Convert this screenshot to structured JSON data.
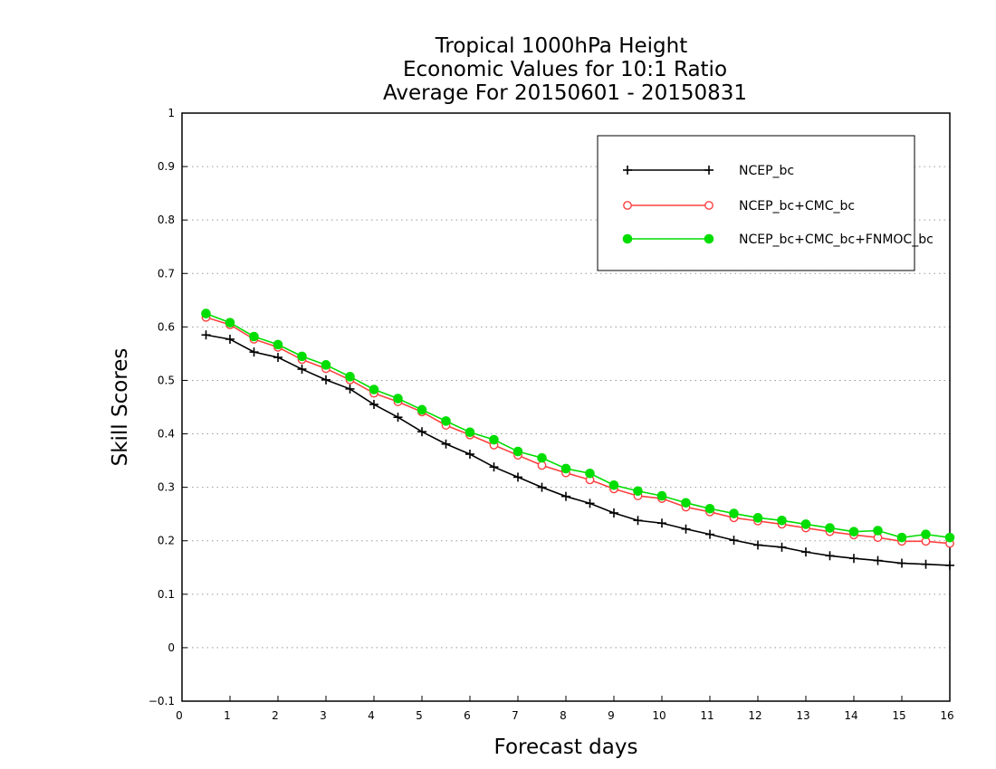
{
  "chart_data": {
    "type": "line",
    "title_lines": [
      "Tropical 1000hPa Height",
      "Economic Values for 10:1 Ratio",
      "Average For 20150601 - 20150831"
    ],
    "xlabel": "Forecast days",
    "ylabel": "Skill Scores",
    "xlim": [
      0,
      16
    ],
    "ylim": [
      -0.1,
      1
    ],
    "x_ticks": [
      0,
      1,
      2,
      3,
      4,
      5,
      6,
      7,
      8,
      9,
      10,
      11,
      12,
      13,
      14,
      15,
      16
    ],
    "y_ticks": [
      -0.1,
      0,
      0.1,
      0.2,
      0.3,
      0.4,
      0.5,
      0.6,
      0.7,
      0.8,
      0.9,
      1
    ],
    "y_tick_labels": [
      "−0.1",
      "0",
      "0.1",
      "0.2",
      "0.3",
      "0.4",
      "0.5",
      "0.6",
      "0.7",
      "0.8",
      "0.9",
      "1"
    ],
    "grid": "horizontal-dotted",
    "legend_position": "top-right",
    "x": [
      0.5,
      1,
      1.5,
      2,
      2.5,
      3,
      3.5,
      4,
      4.5,
      5,
      5.5,
      6,
      6.5,
      7,
      7.5,
      8,
      8.5,
      9,
      9.5,
      10,
      10.5,
      11,
      11.5,
      12,
      12.5,
      13,
      13.5,
      14,
      14.5,
      15,
      15.5,
      16
    ],
    "series": [
      {
        "name": "NCEP_bc",
        "color": "#000000",
        "marker": "plus",
        "values": [
          0.585,
          0.577,
          0.553,
          0.543,
          0.521,
          0.501,
          0.484,
          0.455,
          0.431,
          0.404,
          0.381,
          0.362,
          0.338,
          0.319,
          0.3,
          0.283,
          0.27,
          0.252,
          0.238,
          0.233,
          0.222,
          0.212,
          0.201,
          0.192,
          0.188,
          0.179,
          0.172,
          0.167,
          0.163,
          0.158,
          0.156,
          0.154
        ]
      },
      {
        "name": "NCEP_bc+CMC_bc",
        "color": "#ff4040",
        "marker": "open-circle",
        "values": [
          0.618,
          0.604,
          0.577,
          0.562,
          0.539,
          0.522,
          0.501,
          0.476,
          0.46,
          0.441,
          0.416,
          0.398,
          0.379,
          0.36,
          0.341,
          0.327,
          0.314,
          0.297,
          0.284,
          0.279,
          0.263,
          0.254,
          0.243,
          0.237,
          0.231,
          0.224,
          0.217,
          0.211,
          0.206,
          0.199,
          0.199,
          0.195
        ]
      },
      {
        "name": "NCEP_bc+CMC_bc+FNMOC_bc",
        "color": "#00dd00",
        "marker": "filled-circle",
        "values": [
          0.625,
          0.608,
          0.582,
          0.567,
          0.545,
          0.529,
          0.507,
          0.483,
          0.466,
          0.445,
          0.424,
          0.403,
          0.389,
          0.367,
          0.355,
          0.335,
          0.326,
          0.304,
          0.293,
          0.284,
          0.271,
          0.26,
          0.251,
          0.243,
          0.238,
          0.231,
          0.224,
          0.217,
          0.219,
          0.206,
          0.212,
          0.206
        ]
      }
    ]
  }
}
